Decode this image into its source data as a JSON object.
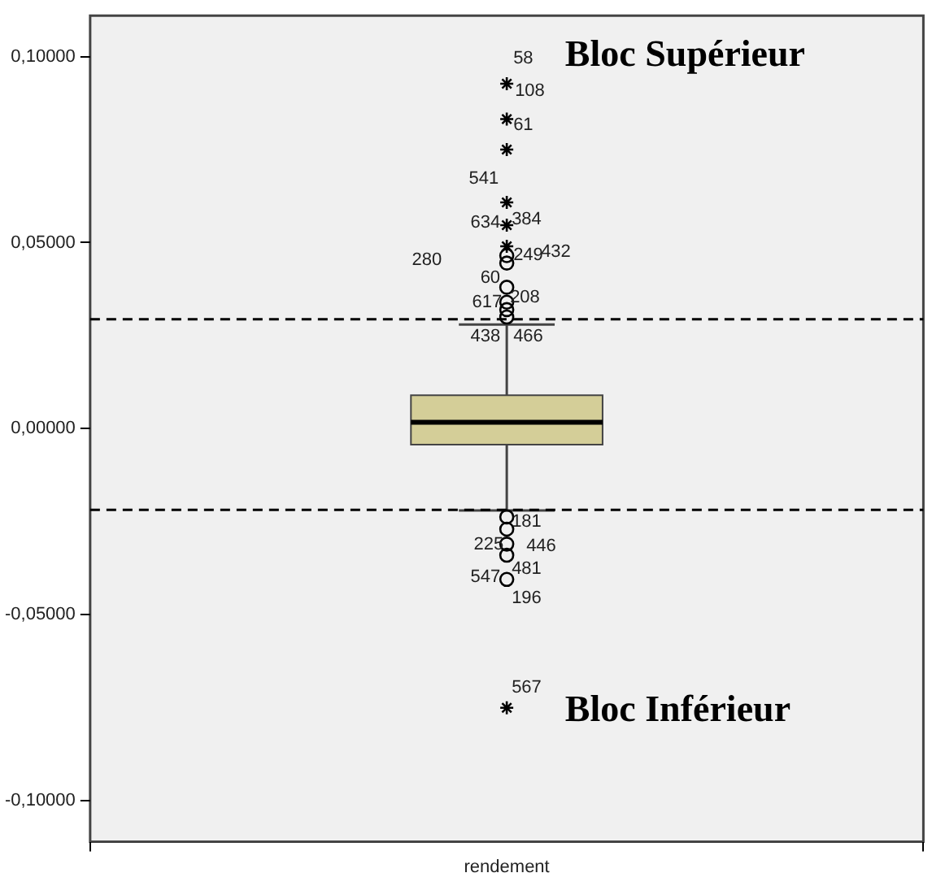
{
  "chart_data": {
    "type": "box",
    "categories": [
      "rendement"
    ],
    "color": "#d4ce98",
    "boxes": [
      {
        "low": -0.022,
        "q1": -0.0043,
        "median": 0.0017,
        "q3": 0.009,
        "high": 0.028,
        "outliers": [
          0.0927,
          0.0832,
          0.075,
          0.0608,
          0.0547,
          0.049,
          0.0465,
          0.0445,
          0.038,
          0.034,
          0.032,
          0.03,
          -0.0237,
          -0.027,
          -0.031,
          -0.034,
          -0.0405,
          -0.075
        ]
      }
    ],
    "ylim": [
      -0.111,
      0.111
    ],
    "yticks": [
      {
        "value": 0.1,
        "label": "0,10000"
      },
      {
        "value": 0.05,
        "label": "0,05000"
      },
      {
        "value": 0,
        "label": "0,00000"
      },
      {
        "value": -0.05,
        "label": "-0,05000"
      },
      {
        "value": -0.1,
        "label": "-0,10000"
      }
    ],
    "grid": false,
    "legend": false,
    "ref_lines": [
      {
        "axis": "y",
        "value": 0.0294,
        "color": "#000000",
        "line_style": "dashed"
      },
      {
        "axis": "y",
        "value": -0.0218,
        "color": "#000000",
        "line_style": "dashed"
      }
    ],
    "annotations": [
      "Bloc Supérieur",
      "Bloc Inférieur",
      "58",
      "108",
      "61",
      "541",
      "634",
      "384",
      "280",
      "249",
      "432",
      "60",
      "617",
      "208",
      "438",
      "466",
      "181",
      "225",
      "446",
      "547",
      "481",
      "196",
      "567"
    ]
  }
}
